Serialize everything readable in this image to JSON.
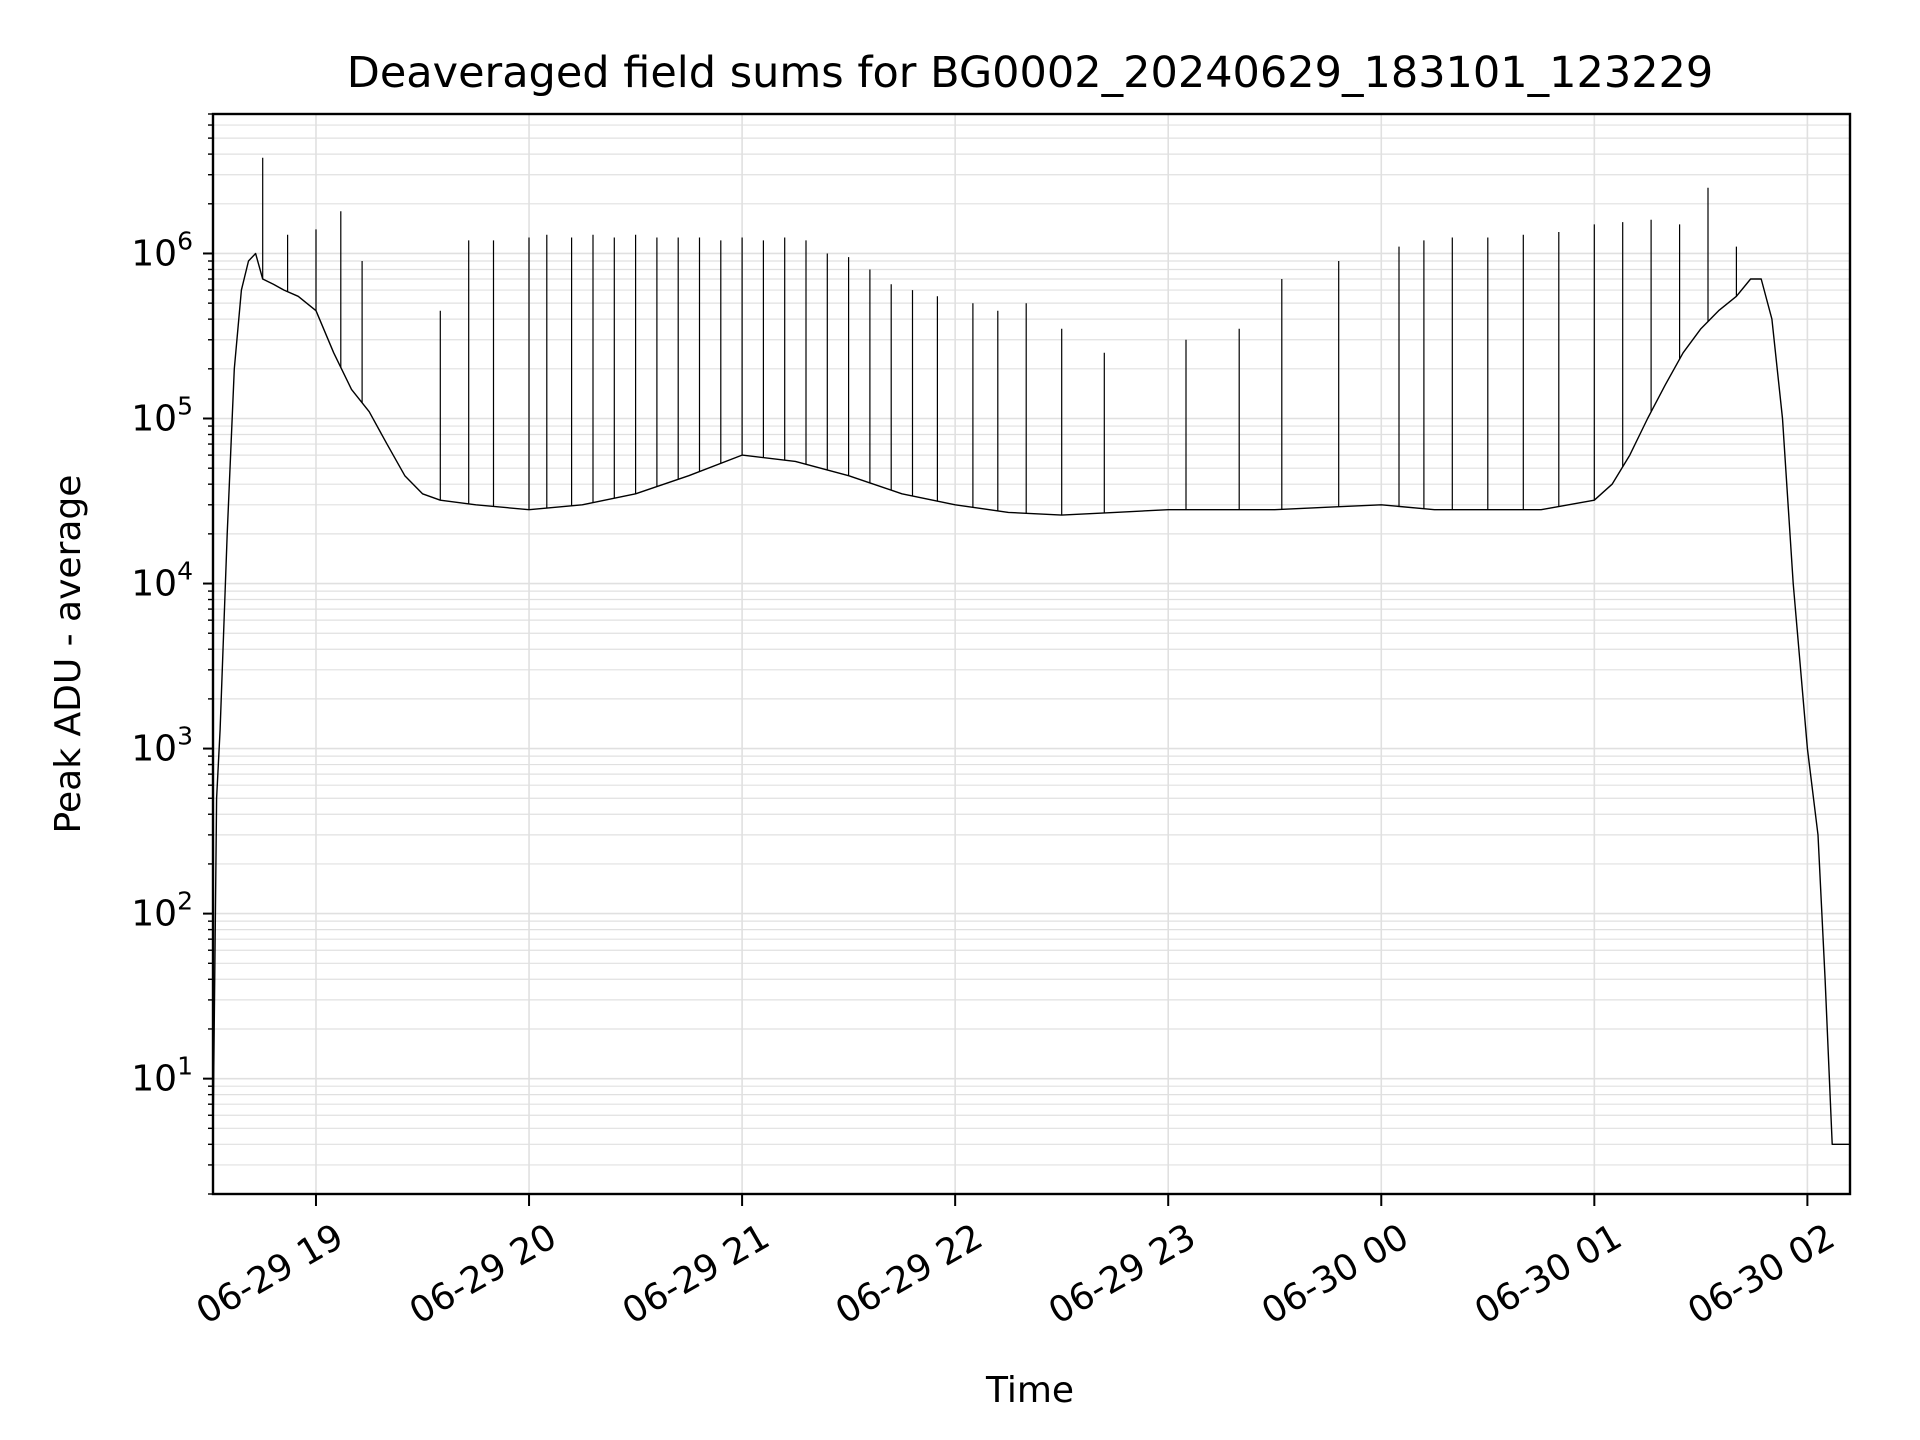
{
  "chart_data": {
    "type": "line",
    "title": "Deaveraged field sums for BG0002_20240629_183101_123229",
    "xlabel": "Time",
    "ylabel": "Peak ADU - average",
    "yscale": "log",
    "grid": true,
    "legend": "none",
    "line_color": "#000000",
    "grid_color": "#e0e0e0",
    "xlim": [
      "2024-06-29 18:31",
      "2024-06-30 02:12"
    ],
    "ylim": [
      2,
      7000000
    ],
    "x_ticks": [
      {
        "value": "2024-06-29 19:00",
        "label": "06-29 19"
      },
      {
        "value": "2024-06-29 20:00",
        "label": "06-29 20"
      },
      {
        "value": "2024-06-29 21:00",
        "label": "06-29 21"
      },
      {
        "value": "2024-06-29 22:00",
        "label": "06-29 22"
      },
      {
        "value": "2024-06-29 23:00",
        "label": "06-29 23"
      },
      {
        "value": "2024-06-30 00:00",
        "label": "06-30 00"
      },
      {
        "value": "2024-06-30 01:00",
        "label": "06-30 01"
      },
      {
        "value": "2024-06-30 02:00",
        "label": "06-30 02"
      }
    ],
    "y_ticks": [
      {
        "value": 10,
        "base": "10",
        "exp": "1"
      },
      {
        "value": 100,
        "base": "10",
        "exp": "2"
      },
      {
        "value": 1000,
        "base": "10",
        "exp": "3"
      },
      {
        "value": 10000,
        "base": "10",
        "exp": "4"
      },
      {
        "value": 100000,
        "base": "10",
        "exp": "5"
      },
      {
        "value": 1000000,
        "base": "10",
        "exp": "6"
      }
    ],
    "series": [
      {
        "baseline": {
          "x": [
            "2024-06-29 18:31",
            "2024-06-29 18:32",
            "2024-06-29 18:33",
            "2024-06-29 18:35",
            "2024-06-29 18:37",
            "2024-06-29 18:39",
            "2024-06-29 18:41",
            "2024-06-29 18:43",
            "2024-06-29 18:45",
            "2024-06-29 18:48",
            "2024-06-29 18:51",
            "2024-06-29 18:55",
            "2024-06-29 19:00",
            "2024-06-29 19:05",
            "2024-06-29 19:10",
            "2024-06-29 19:15",
            "2024-06-29 19:20",
            "2024-06-29 19:25",
            "2024-06-29 19:30",
            "2024-06-29 19:35",
            "2024-06-29 19:45",
            "2024-06-29 20:00",
            "2024-06-29 20:15",
            "2024-06-29 20:30",
            "2024-06-29 20:45",
            "2024-06-29 21:00",
            "2024-06-29 21:15",
            "2024-06-29 21:30",
            "2024-06-29 21:45",
            "2024-06-29 22:00",
            "2024-06-29 22:15",
            "2024-06-29 22:30",
            "2024-06-29 22:45",
            "2024-06-29 23:00",
            "2024-06-29 23:15",
            "2024-06-29 23:30",
            "2024-06-29 23:45",
            "2024-06-30 00:00",
            "2024-06-30 00:15",
            "2024-06-30 00:30",
            "2024-06-30 00:45",
            "2024-06-30 01:00",
            "2024-06-30 01:05",
            "2024-06-30 01:10",
            "2024-06-30 01:15",
            "2024-06-30 01:20",
            "2024-06-30 01:25",
            "2024-06-30 01:30",
            "2024-06-30 01:35",
            "2024-06-30 01:40",
            "2024-06-30 01:44",
            "2024-06-30 01:47",
            "2024-06-30 01:50",
            "2024-06-30 01:53",
            "2024-06-30 01:56",
            "2024-06-30 02:00",
            "2024-06-30 02:03",
            "2024-06-30 02:05",
            "2024-06-30 02:07",
            "2024-06-30 02:12"
          ],
          "y": [
            4,
            500,
            1300,
            20000,
            200000,
            600000,
            900000,
            1000000,
            700000,
            650000,
            600000,
            550000,
            450000,
            250000,
            150000,
            110000,
            70000,
            45000,
            35000,
            32000,
            30000,
            28000,
            30000,
            35000,
            45000,
            60000,
            55000,
            45000,
            35000,
            30000,
            27000,
            26000,
            27000,
            28000,
            28000,
            28000,
            29000,
            30000,
            28000,
            28000,
            28000,
            32000,
            40000,
            60000,
            100000,
            160000,
            250000,
            350000,
            450000,
            550000,
            700000,
            700000,
            400000,
            100000,
            10000,
            1000,
            300,
            40,
            4,
            4
          ]
        },
        "spikes": {
          "x": [
            "2024-06-29 18:45",
            "2024-06-29 18:52",
            "2024-06-29 19:00",
            "2024-06-29 19:07",
            "2024-06-29 19:13",
            "2024-06-29 19:35",
            "2024-06-29 19:43",
            "2024-06-29 19:50",
            "2024-06-29 20:00",
            "2024-06-29 20:05",
            "2024-06-29 20:12",
            "2024-06-29 20:18",
            "2024-06-29 20:24",
            "2024-06-29 20:30",
            "2024-06-29 20:36",
            "2024-06-29 20:42",
            "2024-06-29 20:48",
            "2024-06-29 20:54",
            "2024-06-29 21:00",
            "2024-06-29 21:06",
            "2024-06-29 21:12",
            "2024-06-29 21:18",
            "2024-06-29 21:24",
            "2024-06-29 21:30",
            "2024-06-29 21:36",
            "2024-06-29 21:42",
            "2024-06-29 21:48",
            "2024-06-29 21:55",
            "2024-06-29 22:05",
            "2024-06-29 22:12",
            "2024-06-29 22:20",
            "2024-06-29 22:30",
            "2024-06-29 22:42",
            "2024-06-29 23:05",
            "2024-06-29 23:20",
            "2024-06-29 23:32",
            "2024-06-29 23:48",
            "2024-06-30 00:05",
            "2024-06-30 00:12",
            "2024-06-30 00:20",
            "2024-06-30 00:30",
            "2024-06-30 00:40",
            "2024-06-30 00:50",
            "2024-06-30 01:00",
            "2024-06-30 01:08",
            "2024-06-30 01:16",
            "2024-06-30 01:24",
            "2024-06-30 01:32",
            "2024-06-30 01:40"
          ],
          "y": [
            3800000,
            1300000,
            1400000,
            1800000,
            900000,
            450000,
            1200000,
            1200000,
            1250000,
            1300000,
            1250000,
            1300000,
            1250000,
            1300000,
            1250000,
            1250000,
            1250000,
            1200000,
            1250000,
            1200000,
            1250000,
            1200000,
            1000000,
            950000,
            800000,
            650000,
            600000,
            550000,
            500000,
            450000,
            500000,
            350000,
            250000,
            300000,
            350000,
            700000,
            900000,
            1100000,
            1200000,
            1250000,
            1250000,
            1300000,
            1350000,
            1500000,
            1550000,
            1600000,
            1500000,
            2500000,
            1100000
          ]
        }
      }
    ]
  }
}
